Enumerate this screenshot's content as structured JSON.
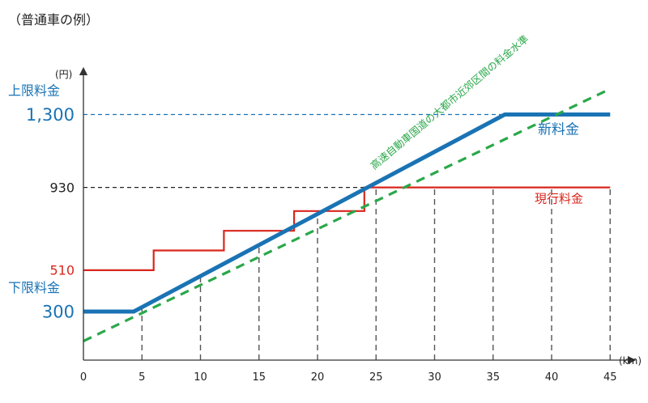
{
  "title": "（普通車の例）",
  "chart_data": {
    "type": "line",
    "x_unit": "(km)",
    "y_unit": "(円)",
    "xlim": [
      0,
      45
    ],
    "x_ticks": [
      "0",
      "5",
      "10",
      "15",
      "20",
      "25",
      "30",
      "35",
      "40",
      "45"
    ],
    "y_markers": [
      {
        "label": "1,300",
        "value": 1300,
        "caption": "上限料金",
        "color": "#1a73b4"
      },
      {
        "label": "930",
        "value": 930,
        "color": "#222222"
      },
      {
        "label": "510",
        "value": 510,
        "color": "#d9261c"
      },
      {
        "label": "300",
        "value": 300,
        "caption": "下限料金",
        "color": "#1a73b4"
      }
    ],
    "series": [
      {
        "name": "現行料金",
        "color": "#d9261c",
        "kind": "step",
        "points": [
          [
            0,
            510
          ],
          [
            6,
            510
          ],
          [
            6,
            610
          ],
          [
            12,
            610
          ],
          [
            12,
            710
          ],
          [
            18,
            710
          ],
          [
            18,
            810
          ],
          [
            24,
            810
          ],
          [
            24,
            930
          ],
          [
            45,
            930
          ]
        ]
      },
      {
        "name": "新料金",
        "color": "#1a73b4",
        "kind": "line",
        "points": [
          [
            0,
            300
          ],
          [
            4.3,
            300
          ],
          [
            36,
            1300
          ],
          [
            45,
            1300
          ]
        ]
      },
      {
        "name": "高速自動車国道の大都市近郊区間の料金水準",
        "color": "#2aa84a",
        "kind": "dashed",
        "points": [
          [
            0,
            150
          ],
          [
            45,
            1430
          ]
        ]
      }
    ],
    "grid": "dashed vertical lines at 5 km intervals"
  }
}
